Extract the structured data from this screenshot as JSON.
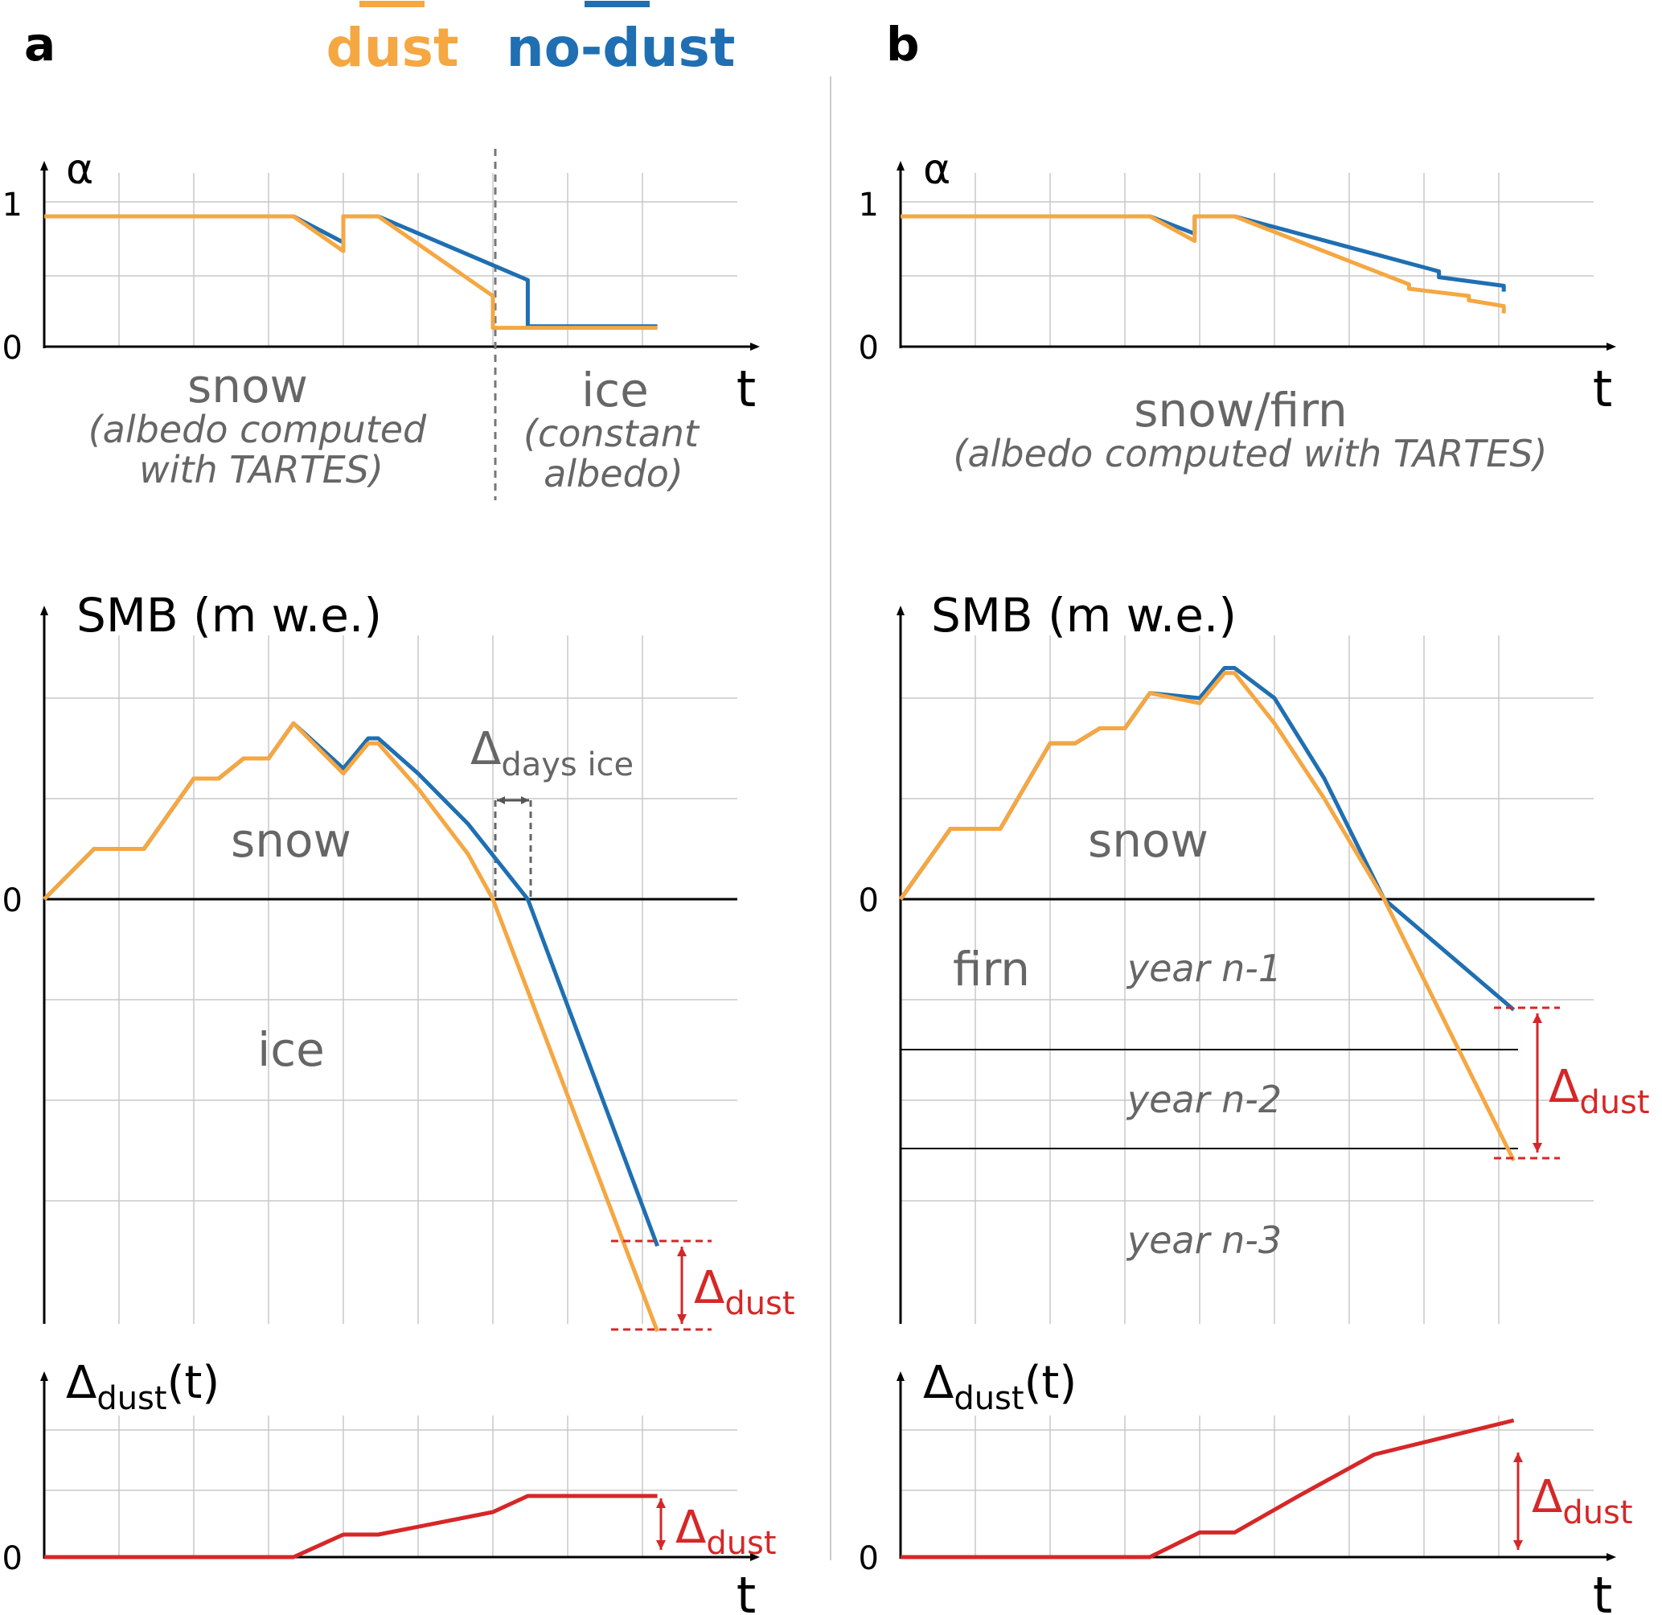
{
  "panels": {
    "a": {
      "label": "a"
    },
    "b": {
      "label": "b"
    }
  },
  "legend": {
    "dust": "dust",
    "no_dust": "no-dust"
  },
  "colors": {
    "dust": "#f5a742",
    "no_dust": "#1f6fb2",
    "delta": "#d62728",
    "grid": "#c8c8c8",
    "text_gray": "#666666",
    "axis": "#000000",
    "divider": "#cccccc"
  },
  "labels": {
    "alpha_axis": "α",
    "tick_1": "1",
    "tick_0": "0",
    "t_axis": "t",
    "smb_axis": "SMB (m w.e.)",
    "delta_symbol": "Δ",
    "delta_t_suffix": "(t)",
    "dust_sub": "dust",
    "days_ice_sub": "days ice",
    "a_snow": "snow",
    "a_snow_note_1": "(albedo computed",
    "a_snow_note_2": "with TARTES)",
    "a_ice": "ice",
    "a_ice_note_1": "(constant",
    "a_ice_note_2": "albedo)",
    "b_snowfirn": "snow/firn",
    "b_snowfirn_note": "(albedo computed with TARTES)",
    "smb_snow": "snow",
    "smb_ice": "ice",
    "firn": "firn",
    "year_n1": "year n-1",
    "year_n2": "year n-2",
    "year_n3": "year n-3"
  },
  "chart_data": [
    {
      "panel": "a-albedo",
      "type": "line",
      "ylabel": "α",
      "xlabel": "t",
      "ylim": [
        0,
        1.3
      ],
      "yticks": [
        0,
        1
      ],
      "series": [
        {
          "name": "no-dust",
          "points": [
            [
              0,
              0.9
            ],
            [
              5,
              0.9
            ],
            [
              6,
              0.72
            ],
            [
              6,
              0.9
            ],
            [
              6.7,
              0.9
            ],
            [
              9.7,
              0.46
            ],
            [
              9.7,
              0.14
            ],
            [
              12.3,
              0.14
            ]
          ]
        },
        {
          "name": "dust",
          "points": [
            [
              0,
              0.9
            ],
            [
              5,
              0.9
            ],
            [
              6,
              0.66
            ],
            [
              6,
              0.9
            ],
            [
              6.7,
              0.9
            ],
            [
              9,
              0.35
            ],
            [
              9,
              0.13
            ],
            [
              12.3,
              0.13
            ]
          ]
        }
      ],
      "annotations": [
        "snow (albedo computed with TARTES)",
        "ice (constant albedo)"
      ]
    },
    {
      "panel": "a-smb",
      "type": "line",
      "ylabel": "SMB (m w.e.)",
      "xlabel": "t",
      "series": [
        {
          "name": "no-dust",
          "points": [
            [
              0,
              0
            ],
            [
              1,
              0.5
            ],
            [
              2,
              0.5
            ],
            [
              3,
              1.2
            ],
            [
              3.5,
              1.2
            ],
            [
              4,
              1.4
            ],
            [
              4.5,
              1.4
            ],
            [
              5,
              1.75
            ],
            [
              6,
              1.3
            ],
            [
              6.5,
              1.6
            ],
            [
              6.7,
              1.6
            ],
            [
              7.5,
              1.25
            ],
            [
              8.5,
              0.75
            ],
            [
              9.7,
              0
            ],
            [
              12.3,
              -3.45
            ]
          ]
        },
        {
          "name": "dust",
          "points": [
            [
              0,
              0
            ],
            [
              1,
              0.5
            ],
            [
              2,
              0.5
            ],
            [
              3,
              1.2
            ],
            [
              3.5,
              1.2
            ],
            [
              4,
              1.4
            ],
            [
              4.5,
              1.4
            ],
            [
              5,
              1.75
            ],
            [
              6,
              1.25
            ],
            [
              6.5,
              1.55
            ],
            [
              6.7,
              1.55
            ],
            [
              7.5,
              1.1
            ],
            [
              8.5,
              0.45
            ],
            [
              9,
              0
            ],
            [
              12.3,
              -4.3
            ]
          ]
        }
      ],
      "annotations": [
        "Δdays ice",
        "Δdust",
        "snow",
        "ice"
      ]
    },
    {
      "panel": "a-delta",
      "type": "line",
      "ylabel": "Δdust(t)",
      "xlabel": "t",
      "series": [
        {
          "name": "Δdust",
          "points": [
            [
              0,
              0
            ],
            [
              5,
              0
            ],
            [
              6,
              0.35
            ],
            [
              6.7,
              0.35
            ],
            [
              9,
              0.7
            ],
            [
              9.7,
              0.95
            ],
            [
              12.3,
              0.95
            ]
          ]
        }
      ]
    },
    {
      "panel": "b-albedo",
      "type": "line",
      "ylabel": "α",
      "xlabel": "t",
      "ylim": [
        0,
        1.3
      ],
      "yticks": [
        0,
        1
      ],
      "series": [
        {
          "name": "no-dust",
          "points": [
            [
              0,
              0.9
            ],
            [
              5,
              0.9
            ],
            [
              5.9,
              0.78
            ],
            [
              5.9,
              0.9
            ],
            [
              6.7,
              0.9
            ],
            [
              10.8,
              0.52
            ],
            [
              10.8,
              0.48
            ],
            [
              12.1,
              0.42
            ],
            [
              12.1,
              0.38
            ]
          ]
        },
        {
          "name": "dust",
          "points": [
            [
              0,
              0.9
            ],
            [
              5,
              0.9
            ],
            [
              5.9,
              0.73
            ],
            [
              5.9,
              0.9
            ],
            [
              6.7,
              0.9
            ],
            [
              10.2,
              0.43
            ],
            [
              10.2,
              0.4
            ],
            [
              11.4,
              0.35
            ],
            [
              11.4,
              0.32
            ],
            [
              12.1,
              0.28
            ],
            [
              12.1,
              0.23
            ]
          ]
        }
      ],
      "annotations": [
        "snow/firn (albedo computed with TARTES)"
      ]
    },
    {
      "panel": "b-smb",
      "type": "line",
      "ylabel": "SMB (m w.e.)",
      "xlabel": "t",
      "series": [
        {
          "name": "no-dust",
          "points": [
            [
              0,
              0
            ],
            [
              1,
              0.7
            ],
            [
              2,
              0.7
            ],
            [
              3,
              1.55
            ],
            [
              3.5,
              1.55
            ],
            [
              4,
              1.7
            ],
            [
              4.5,
              1.7
            ],
            [
              5,
              2.05
            ],
            [
              6,
              2.0
            ],
            [
              6.5,
              2.3
            ],
            [
              6.7,
              2.3
            ],
            [
              7.5,
              2.0
            ],
            [
              8.5,
              1.2
            ],
            [
              9.7,
              0
            ],
            [
              12.3,
              -1.1
            ]
          ]
        },
        {
          "name": "dust",
          "points": [
            [
              0,
              0
            ],
            [
              1,
              0.7
            ],
            [
              2,
              0.7
            ],
            [
              3,
              1.55
            ],
            [
              3.5,
              1.55
            ],
            [
              4,
              1.7
            ],
            [
              4.5,
              1.7
            ],
            [
              5,
              2.05
            ],
            [
              6,
              1.95
            ],
            [
              6.5,
              2.25
            ],
            [
              6.7,
              2.25
            ],
            [
              7.5,
              1.75
            ],
            [
              8.5,
              1.0
            ],
            [
              9.7,
              0
            ],
            [
              12.3,
              -2.6
            ]
          ]
        }
      ],
      "annotations": [
        "snow",
        "firn",
        "year n-1",
        "year n-2",
        "year n-3",
        "Δdust"
      ]
    },
    {
      "panel": "b-delta",
      "type": "line",
      "ylabel": "Δdust(t)",
      "xlabel": "t",
      "series": [
        {
          "name": "Δdust",
          "points": [
            [
              0,
              0
            ],
            [
              5,
              0
            ],
            [
              6,
              0.18
            ],
            [
              6.7,
              0.18
            ],
            [
              8,
              0.45
            ],
            [
              9.5,
              0.75
            ],
            [
              12.3,
              1.0
            ]
          ]
        }
      ]
    }
  ]
}
